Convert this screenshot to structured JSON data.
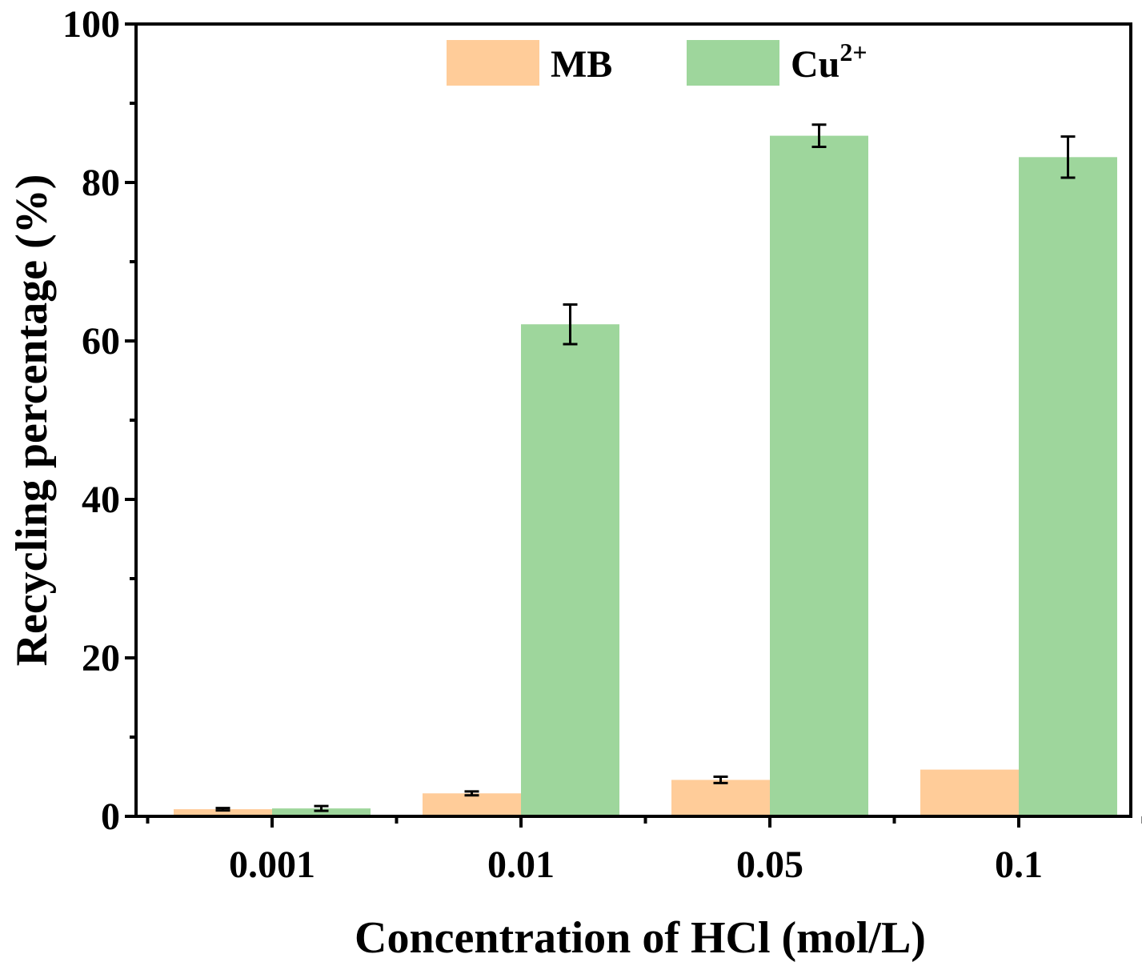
{
  "chart_data": {
    "type": "bar",
    "title": "",
    "xlabel": "Concentration of HCl (mol/L)",
    "ylabel": "Recycling percentage (%)",
    "categories": [
      "0.001",
      "0.01",
      "0.05",
      "0.1"
    ],
    "ylim": [
      0,
      100
    ],
    "yticks": [
      0,
      20,
      40,
      60,
      80,
      100
    ],
    "grid": false,
    "legend_position": "top-center",
    "series": [
      {
        "name": "MB",
        "name_base": "MB",
        "name_sup": "",
        "color": "#FFCC99",
        "values": [
          0.9,
          2.9,
          4.6,
          5.9
        ],
        "errors": [
          0.15,
          0.25,
          0.4,
          null
        ]
      },
      {
        "name": "Cu2+",
        "name_base": "Cu",
        "name_sup": "2+",
        "color": "#9ED69C",
        "values": [
          1.0,
          62.1,
          85.9,
          83.2
        ],
        "errors": [
          0.3,
          2.5,
          1.4,
          2.6
        ]
      }
    ]
  }
}
